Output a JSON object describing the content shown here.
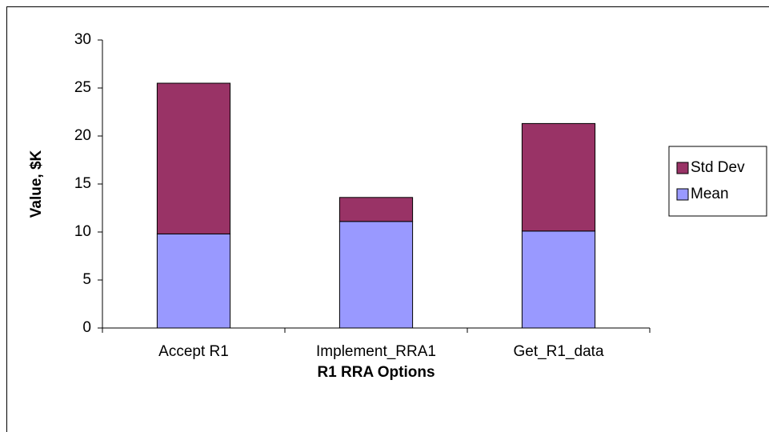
{
  "chart_data": {
    "type": "stacked_bar",
    "x_label": "R1 RRA Options",
    "y_label": "Value, $K",
    "categories": [
      "Accept R1",
      "Implement_RRA1",
      "Get_R1_data"
    ],
    "series": [
      {
        "name": "Mean",
        "color": "#9999ff",
        "values": [
          9.8,
          11.1,
          10.1
        ]
      },
      {
        "name": "Std Dev",
        "color": "#993366",
        "values": [
          15.7,
          2.5,
          11.2
        ]
      }
    ],
    "ylim": [
      0,
      30
    ],
    "yticks": [
      0,
      5,
      10,
      15,
      20,
      25,
      30
    ],
    "legend": "right"
  }
}
